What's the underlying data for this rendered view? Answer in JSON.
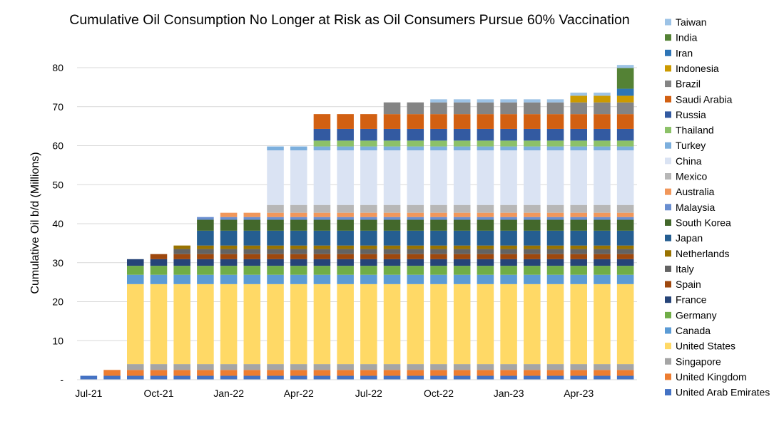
{
  "chart_data": {
    "type": "bar",
    "stacked": true,
    "title": "Cumulative Oil Consumption No Longer at Risk as Oil Consumers Pursue 60% Vaccination",
    "xlabel": "",
    "ylabel": "Cumulative Oil b/d (Millions)",
    "ylim": [
      0,
      85
    ],
    "yticks": [
      0,
      10,
      20,
      30,
      40,
      50,
      60,
      70,
      80
    ],
    "ytick_labels": [
      "-",
      "10",
      "20",
      "30",
      "40",
      "50",
      "60",
      "70",
      "80"
    ],
    "grid": true,
    "legend_position": "right",
    "categories": [
      "Jul-21",
      "Aug-21",
      "Sep-21",
      "Oct-21",
      "Nov-21",
      "Dec-21",
      "Jan-22",
      "Feb-22",
      "Mar-22",
      "Apr-22",
      "May-22",
      "Jun-22",
      "Jul-22",
      "Aug-22",
      "Sep-22",
      "Oct-22",
      "Nov-22",
      "Dec-22",
      "Jan-23",
      "Feb-23",
      "Mar-23",
      "Apr-23",
      "May-23",
      "Jun-23"
    ],
    "xtick_labels": [
      "Jul-21",
      "",
      "",
      "Oct-21",
      "",
      "",
      "Jan-22",
      "",
      "",
      "Apr-22",
      "",
      "",
      "Jul-22",
      "",
      "",
      "Oct-22",
      "",
      "",
      "Jan-23",
      "",
      "",
      "Apr-23",
      "",
      ""
    ],
    "series": [
      {
        "name": "United Arab Emirates",
        "color": "#4472C4",
        "values": [
          1.0,
          1.0,
          1.0,
          1.0,
          1.0,
          1.0,
          1.0,
          1.0,
          1.0,
          1.0,
          1.0,
          1.0,
          1.0,
          1.0,
          1.0,
          1.0,
          1.0,
          1.0,
          1.0,
          1.0,
          1.0,
          1.0,
          1.0,
          1.0
        ]
      },
      {
        "name": "United Kingdom",
        "color": "#ED7D31",
        "values": [
          0,
          1.5,
          1.5,
          1.5,
          1.5,
          1.5,
          1.5,
          1.5,
          1.5,
          1.5,
          1.5,
          1.5,
          1.5,
          1.5,
          1.5,
          1.5,
          1.5,
          1.5,
          1.5,
          1.5,
          1.5,
          1.5,
          1.5,
          1.5
        ]
      },
      {
        "name": "Singapore",
        "color": "#A5A5A5",
        "values": [
          0,
          0,
          1.5,
          1.5,
          1.5,
          1.5,
          1.5,
          1.5,
          1.5,
          1.5,
          1.5,
          1.5,
          1.5,
          1.5,
          1.5,
          1.5,
          1.5,
          1.5,
          1.5,
          1.5,
          1.5,
          1.5,
          1.5,
          1.5
        ]
      },
      {
        "name": "United States",
        "color": "#FFD966",
        "values": [
          0,
          0,
          20.5,
          20.5,
          20.5,
          20.5,
          20.5,
          20.5,
          20.5,
          20.5,
          20.5,
          20.5,
          20.5,
          20.5,
          20.5,
          20.5,
          20.5,
          20.5,
          20.5,
          20.5,
          20.5,
          20.5,
          20.5,
          20.5
        ]
      },
      {
        "name": "Canada",
        "color": "#5B9BD5",
        "values": [
          0,
          0,
          2.4,
          2.4,
          2.4,
          2.4,
          2.4,
          2.4,
          2.4,
          2.4,
          2.4,
          2.4,
          2.4,
          2.4,
          2.4,
          2.4,
          2.4,
          2.4,
          2.4,
          2.4,
          2.4,
          2.4,
          2.4,
          2.4
        ]
      },
      {
        "name": "Germany",
        "color": "#70AD47",
        "values": [
          0,
          0,
          2.3,
          2.3,
          2.3,
          2.3,
          2.3,
          2.3,
          2.3,
          2.3,
          2.3,
          2.3,
          2.3,
          2.3,
          2.3,
          2.3,
          2.3,
          2.3,
          2.3,
          2.3,
          2.3,
          2.3,
          2.3,
          2.3
        ]
      },
      {
        "name": "France",
        "color": "#264478",
        "values": [
          0,
          0,
          1.7,
          1.7,
          1.7,
          1.7,
          1.7,
          1.7,
          1.7,
          1.7,
          1.7,
          1.7,
          1.7,
          1.7,
          1.7,
          1.7,
          1.7,
          1.7,
          1.7,
          1.7,
          1.7,
          1.7,
          1.7,
          1.7
        ]
      },
      {
        "name": "Spain",
        "color": "#9E480E",
        "values": [
          0,
          0,
          0,
          1.3,
          1.3,
          1.3,
          1.3,
          1.3,
          1.3,
          1.3,
          1.3,
          1.3,
          1.3,
          1.3,
          1.3,
          1.3,
          1.3,
          1.3,
          1.3,
          1.3,
          1.3,
          1.3,
          1.3,
          1.3
        ]
      },
      {
        "name": "Italy",
        "color": "#636363",
        "values": [
          0,
          0,
          0,
          0,
          1.3,
          1.3,
          1.3,
          1.3,
          1.3,
          1.3,
          1.3,
          1.3,
          1.3,
          1.3,
          1.3,
          1.3,
          1.3,
          1.3,
          1.3,
          1.3,
          1.3,
          1.3,
          1.3,
          1.3
        ]
      },
      {
        "name": "Netherlands",
        "color": "#997300",
        "values": [
          0,
          0,
          0,
          0,
          0.9,
          0.9,
          0.9,
          0.9,
          0.9,
          0.9,
          0.9,
          0.9,
          0.9,
          0.9,
          0.9,
          0.9,
          0.9,
          0.9,
          0.9,
          0.9,
          0.9,
          0.9,
          0.9,
          0.9
        ]
      },
      {
        "name": "Japan",
        "color": "#255E91",
        "values": [
          0,
          0,
          0,
          0,
          0,
          3.8,
          3.8,
          3.8,
          3.8,
          3.8,
          3.8,
          3.8,
          3.8,
          3.8,
          3.8,
          3.8,
          3.8,
          3.8,
          3.8,
          3.8,
          3.8,
          3.8,
          3.8,
          3.8
        ]
      },
      {
        "name": "South Korea",
        "color": "#43682B",
        "values": [
          0,
          0,
          0,
          0,
          0,
          2.8,
          2.8,
          2.8,
          2.8,
          2.8,
          2.8,
          2.8,
          2.8,
          2.8,
          2.8,
          2.8,
          2.8,
          2.8,
          2.8,
          2.8,
          2.8,
          2.8,
          2.8,
          2.8
        ]
      },
      {
        "name": "Malaysia",
        "color": "#698ED0",
        "values": [
          0,
          0,
          0,
          0,
          0,
          0.7,
          0.7,
          0.7,
          0.7,
          0.7,
          0.7,
          0.7,
          0.7,
          0.7,
          0.7,
          0.7,
          0.7,
          0.7,
          0.7,
          0.7,
          0.7,
          0.7,
          0.7,
          0.7
        ]
      },
      {
        "name": "Australia",
        "color": "#F1975A",
        "values": [
          0,
          0,
          0,
          0,
          0,
          0,
          1.1,
          1.1,
          1.1,
          1.1,
          1.1,
          1.1,
          1.1,
          1.1,
          1.1,
          1.1,
          1.1,
          1.1,
          1.1,
          1.1,
          1.1,
          1.1,
          1.1,
          1.1
        ]
      },
      {
        "name": "Mexico",
        "color": "#B7B7B7",
        "values": [
          0,
          0,
          0,
          0,
          0,
          0,
          0,
          0,
          2.0,
          2.0,
          2.0,
          2.0,
          2.0,
          2.0,
          2.0,
          2.0,
          2.0,
          2.0,
          2.0,
          2.0,
          2.0,
          2.0,
          2.0,
          2.0
        ]
      },
      {
        "name": "China",
        "color": "#DAE3F3",
        "values": [
          0,
          0,
          0,
          0,
          0,
          0,
          0,
          0,
          14.0,
          14.0,
          14.0,
          14.0,
          14.0,
          14.0,
          14.0,
          14.0,
          14.0,
          14.0,
          14.0,
          14.0,
          14.0,
          14.0,
          14.0,
          14.0
        ]
      },
      {
        "name": "Turkey",
        "color": "#7CAFDD",
        "values": [
          0,
          0,
          0,
          0,
          0,
          0,
          0,
          0,
          1.0,
          1.0,
          1.0,
          1.0,
          1.0,
          1.0,
          1.0,
          1.0,
          1.0,
          1.0,
          1.0,
          1.0,
          1.0,
          1.0,
          1.0,
          1.0
        ]
      },
      {
        "name": "Thailand",
        "color": "#8CC168",
        "values": [
          0,
          0,
          0,
          0,
          0,
          0,
          0,
          0,
          0,
          0,
          1.5,
          1.5,
          1.5,
          1.5,
          1.5,
          1.5,
          1.5,
          1.5,
          1.5,
          1.5,
          1.5,
          1.5,
          1.5,
          1.5
        ]
      },
      {
        "name": "Russia",
        "color": "#335AA1",
        "values": [
          0,
          0,
          0,
          0,
          0,
          0,
          0,
          0,
          0,
          0,
          3.0,
          3.0,
          3.0,
          3.0,
          3.0,
          3.0,
          3.0,
          3.0,
          3.0,
          3.0,
          3.0,
          3.0,
          3.0,
          3.0
        ]
      },
      {
        "name": "Saudi Arabia",
        "color": "#D26012",
        "values": [
          0,
          0,
          0,
          0,
          0,
          0,
          0,
          0,
          0,
          0,
          3.8,
          3.8,
          3.8,
          3.8,
          3.8,
          3.8,
          3.8,
          3.8,
          3.8,
          3.8,
          3.8,
          3.8,
          3.8,
          3.8
        ]
      },
      {
        "name": "Brazil",
        "color": "#848484",
        "values": [
          0,
          0,
          0,
          0,
          0,
          0,
          0,
          0,
          0,
          0,
          0,
          0,
          0,
          3.0,
          3.0,
          3.0,
          3.0,
          3.0,
          3.0,
          3.0,
          3.0,
          3.0,
          3.0,
          3.0
        ]
      },
      {
        "name": "Indonesia",
        "color": "#CC9A00",
        "values": [
          0,
          0,
          0,
          0,
          0,
          0,
          0,
          0,
          0,
          0,
          0,
          0,
          0,
          0,
          0,
          0,
          0,
          0,
          0,
          0,
          0,
          1.7,
          1.7,
          1.7
        ]
      },
      {
        "name": "Iran",
        "color": "#2E75B6",
        "values": [
          0,
          0,
          0,
          0,
          0,
          0,
          0,
          0,
          0,
          0,
          0,
          0,
          0,
          0,
          0,
          0,
          0,
          0,
          0,
          0,
          0,
          0,
          0,
          1.8
        ]
      },
      {
        "name": "India",
        "color": "#548235",
        "values": [
          0,
          0,
          0,
          0,
          0,
          0,
          0,
          0,
          0,
          0,
          0,
          0,
          0,
          0,
          0,
          0,
          0,
          0,
          0,
          0,
          0,
          0,
          0,
          5.3
        ]
      },
      {
        "name": "Taiwan",
        "color": "#9DC3E6",
        "values": [
          0,
          0,
          0,
          0,
          0,
          0,
          0,
          0,
          0,
          0,
          0,
          0,
          0,
          0,
          0,
          0.8,
          0.8,
          0.8,
          0.8,
          0.8,
          0.8,
          0.8,
          0.8,
          0.8
        ]
      }
    ]
  }
}
